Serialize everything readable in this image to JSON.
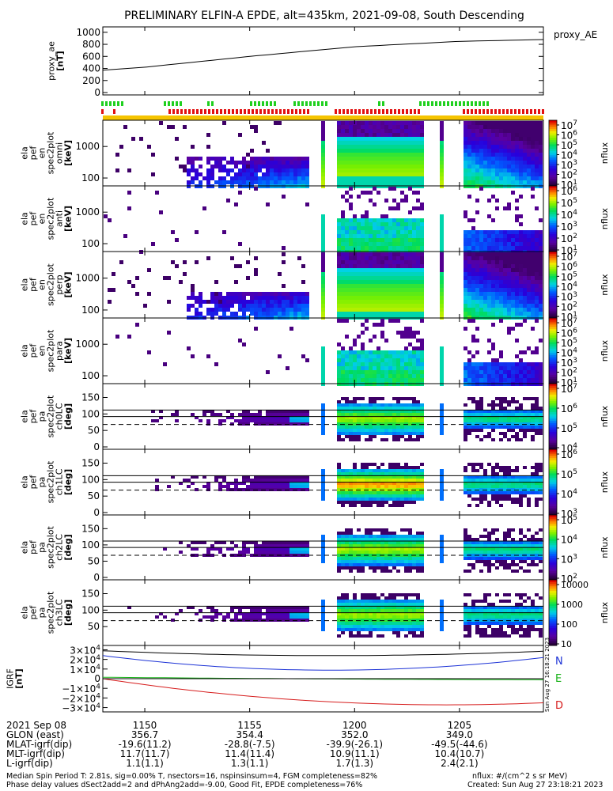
{
  "title": "PRELIMINARY ELFIN-A EPDE, alt=435km, 2021-09-08, South Descending",
  "colors": {
    "zero_line": "#000000",
    "N": "#1c32d6",
    "E": "#19b219",
    "D": "#d61c1c",
    "flag_green": "#1fd01f",
    "flag_red": "#e21212",
    "bar_yellow": "#f5c400"
  },
  "chart_data": [
    {
      "type": "line",
      "name": "proxy_ae",
      "series": [
        {
          "name": "proxy_AE",
          "x": [
            "11:48",
            "11:50",
            "11:55",
            "12:00",
            "12:05",
            "12:09"
          ],
          "y": [
            370,
            420,
            600,
            760,
            850,
            880
          ]
        }
      ],
      "ylabel": [
        "proxy_ae",
        "[nT]"
      ],
      "yticks": [
        "1000",
        "800",
        "600",
        "400",
        "200",
        "0"
      ],
      "ylim": [
        0,
        1050
      ],
      "legend": "proxy_AE"
    },
    {
      "type": "heatmap",
      "panel": "ela_pef_en_spec2plot_omni",
      "ylabel": [
        "ela",
        "pef",
        "en",
        "spec2plot",
        "omni",
        "[keV]"
      ],
      "yscale": "log",
      "yticks": [
        "1000",
        "100"
      ],
      "cbar_ticks": [
        "10^7",
        "10^6",
        "10^5",
        "10^4",
        "10^3",
        "10^2",
        "10^1"
      ],
      "cbar_label": "nflux"
    },
    {
      "type": "heatmap",
      "panel": "ela_pef_en_spec2plot_anti",
      "ylabel": [
        "ela",
        "pef",
        "en",
        "spec2plot",
        "anti",
        "[keV]"
      ],
      "yscale": "log",
      "yticks": [
        "1000",
        "100"
      ],
      "cbar_ticks": [
        "10^6",
        "10^5",
        "10^4",
        "10^3",
        "10^2",
        "10^1"
      ],
      "cbar_label": "nflux"
    },
    {
      "type": "heatmap",
      "panel": "ela_pef_en_spec2plot_perp",
      "ylabel": [
        "ela",
        "pef",
        "en",
        "spec2plot",
        "perp",
        "[keV]"
      ],
      "yscale": "log",
      "yticks": [
        "1000",
        "100"
      ],
      "cbar_ticks": [
        "10^7",
        "10^6",
        "10^5",
        "10^4",
        "10^3",
        "10^2",
        "10^1"
      ],
      "cbar_label": "nflux"
    },
    {
      "type": "heatmap",
      "panel": "ela_pef_en_spec2plot_para",
      "ylabel": [
        "ela",
        "pef",
        "en",
        "spec2plot",
        "para",
        "[keV]"
      ],
      "yscale": "log",
      "yticks": [
        "1000",
        "100"
      ],
      "cbar_ticks": [
        "10^7",
        "10^6",
        "10^5",
        "10^4",
        "10^3",
        "10^2",
        "10^1"
      ],
      "cbar_label": "nflux"
    },
    {
      "type": "heatmap",
      "panel": "ela_pef_pa_spec2plot_ch0LC",
      "ylabel": [
        "ela",
        "pef",
        "pa",
        "spec2plot",
        "ch0LC",
        "[deg]"
      ],
      "yticks": [
        "150",
        "100",
        "50",
        "0"
      ],
      "ylim": [
        0,
        180
      ],
      "cbar_ticks": [
        "10^7",
        "10^6",
        "10^5",
        "10^4"
      ],
      "cbar_label": "nflux"
    },
    {
      "type": "heatmap",
      "panel": "ela_pef_pa_spec2plot_ch1LC",
      "ylabel": [
        "ela",
        "pef",
        "pa",
        "spec2plot",
        "ch1LC",
        "[deg]"
      ],
      "yticks": [
        "150",
        "100",
        "50",
        "0"
      ],
      "ylim": [
        0,
        180
      ],
      "cbar_ticks": [
        "10^6",
        "10^5",
        "10^4",
        "10^3"
      ],
      "cbar_label": "nflux"
    },
    {
      "type": "heatmap",
      "panel": "ela_pef_pa_spec2plot_ch2LC",
      "ylabel": [
        "ela",
        "pef",
        "pa",
        "spec2plot",
        "ch2LC",
        "[deg]"
      ],
      "yticks": [
        "150",
        "100",
        "50",
        "0"
      ],
      "ylim": [
        0,
        180
      ],
      "cbar_ticks": [
        "10^5",
        "10^4",
        "10^3",
        "10^2"
      ],
      "cbar_label": "nflux"
    },
    {
      "type": "heatmap",
      "panel": "ela_pef_pa_spec2plot_ch3LC",
      "ylabel": [
        "ela",
        "pef",
        "pa",
        "spec2plot",
        "ch3LC",
        "[deg]"
      ],
      "yticks": [
        "150",
        "100",
        "50"
      ],
      "ylim": [
        0,
        180
      ],
      "cbar_ticks": [
        "10000",
        "1000",
        "100",
        "10"
      ],
      "cbar_label": "nflux"
    },
    {
      "type": "line",
      "panel": "IGRF",
      "ylabel": [
        "IGRF",
        "[nT]"
      ],
      "yticks": [
        "3×10^4",
        "2×10^4",
        "1×10^4",
        "0",
        "−1×10^4",
        "−2×10^4",
        "−3×10^4"
      ],
      "ylim": [
        -32000,
        32000
      ],
      "series": [
        {
          "name": "N",
          "x": [
            "11:48",
            "12:00",
            "12:09"
          ],
          "y": [
            24000,
            9000,
            22000
          ]
        },
        {
          "name": "E",
          "x": [
            "11:48",
            "12:00",
            "12:09"
          ],
          "y": [
            1500,
            -400,
            -1200
          ]
        },
        {
          "name": "D",
          "x": [
            "11:48",
            "11:56",
            "12:09"
          ],
          "y": [
            0,
            -20000,
            -25000
          ]
        },
        {
          "name": "",
          "x": [
            "11:48",
            "12:00",
            "12:09"
          ],
          "y": [
            29000,
            24000,
            28500
          ]
        }
      ],
      "legend": [
        "N",
        "E",
        "D"
      ],
      "side_stamp": "Sun Aug 27 16:18:21 2023"
    }
  ],
  "footer": {
    "date": "2021 Sep 08",
    "row_labels": [
      "GLON (east)",
      "MLAT-igrf(dip)",
      "MLT-igrf(dip)",
      "L-igrf(dip)"
    ],
    "times": [
      "1150",
      "1155",
      "1200",
      "1205"
    ],
    "glon": [
      "356.7",
      "354.4",
      "352.0",
      "349.0"
    ],
    "mlat": [
      "-19.6(11.2)",
      "-28.8(-7.5)",
      "-39.9(-26.1)",
      "-49.5(-44.6)"
    ],
    "mlt": [
      "11.7(11.7)",
      "11.4(11.4)",
      "10.9(11.1)",
      "10.4(10.7)"
    ],
    "lshell": [
      "1.1(1.1)",
      "1.3(1.1)",
      "1.7(1.3)",
      "2.4(2.1)"
    ],
    "line1": "Median Spin Period T: 2.81s, sig=0.00% T, nsectors=16, nspinsinsum=4, FGM completeness=82%",
    "line2": "Phase delay values dSect2add=2 and dPhAng2add=-9.00, Good Fit, EPDE completeness=76%",
    "units": "nflux: #/(cm^2 s sr MeV)",
    "created": "Created: Sun Aug 27 23:18:21 2023"
  }
}
